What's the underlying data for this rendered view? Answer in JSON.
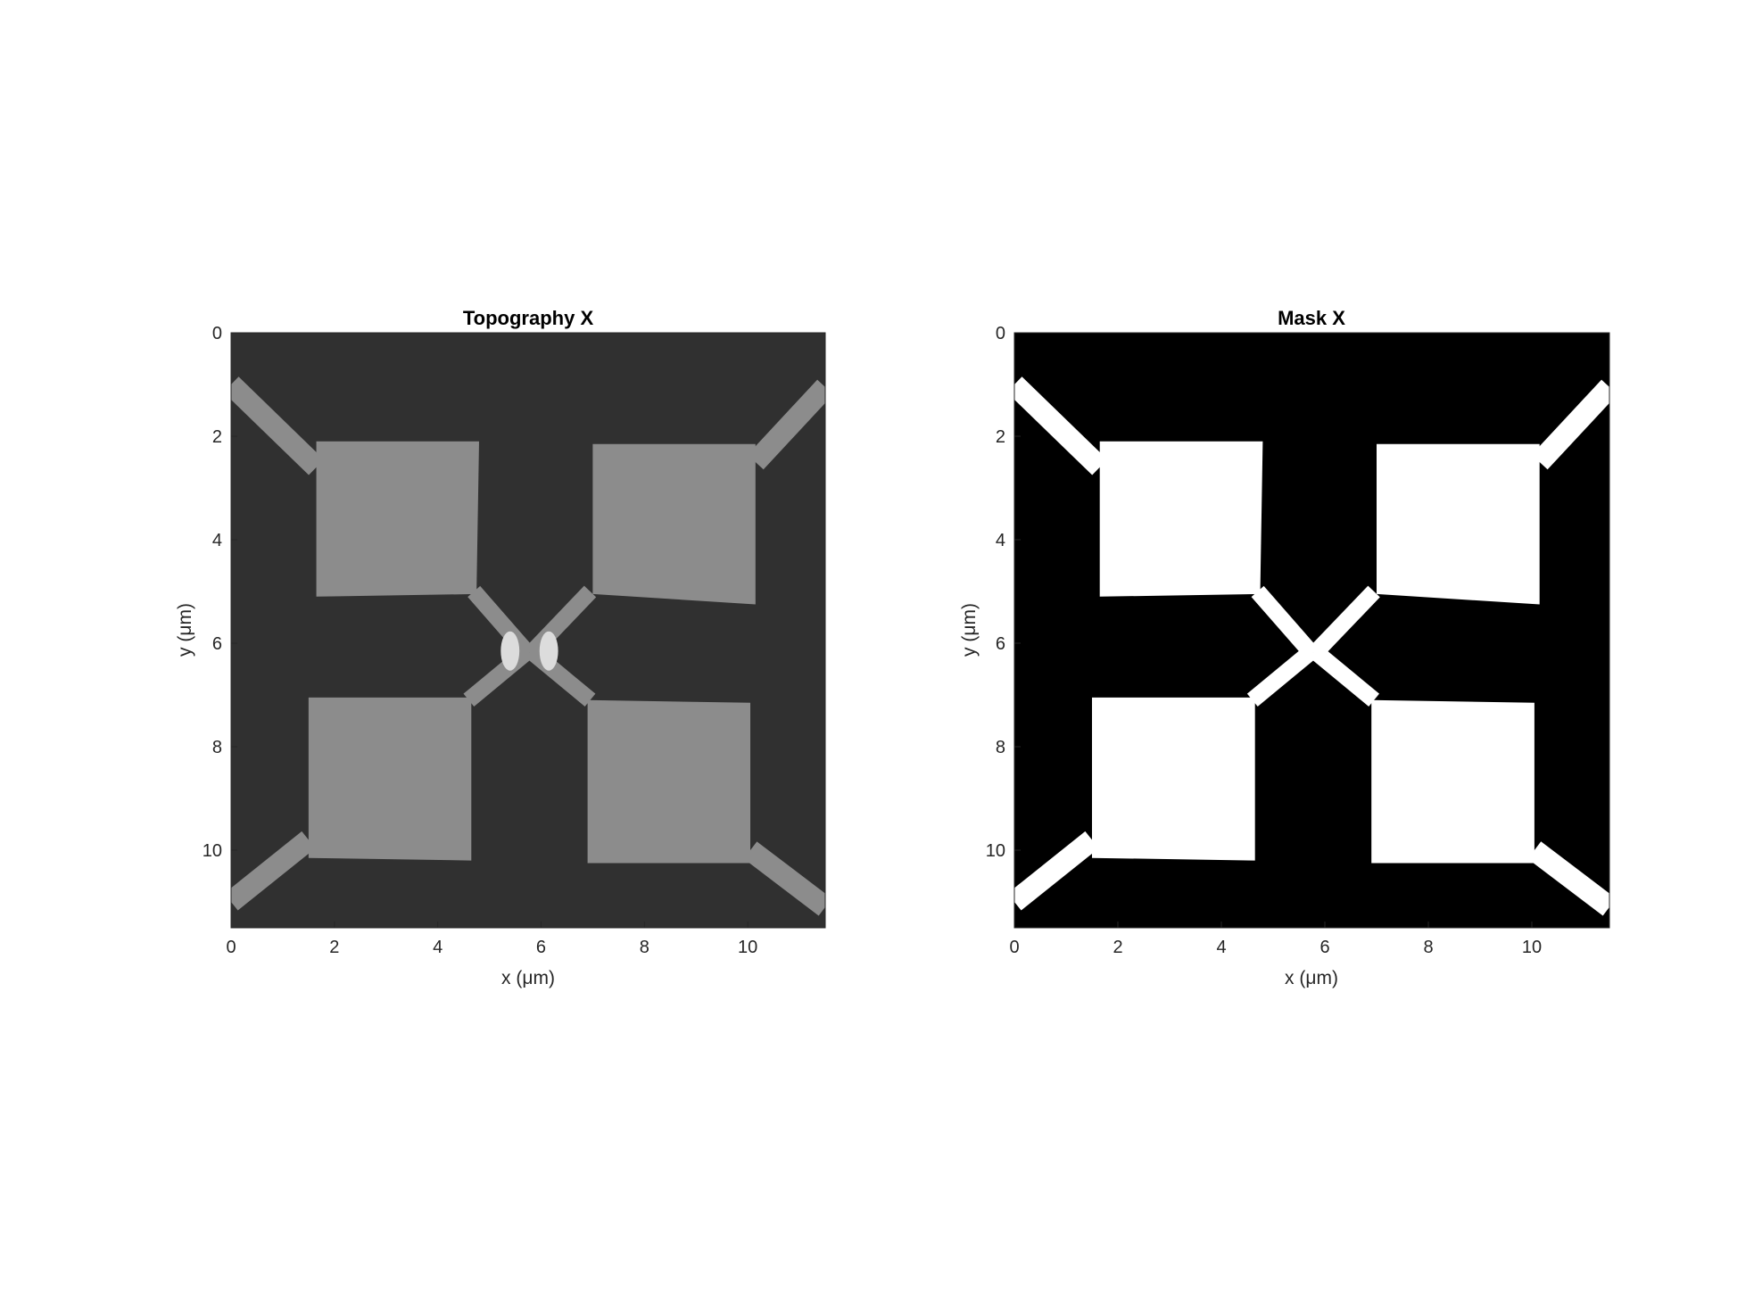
{
  "figure": {
    "background": "#ffffff"
  },
  "chart_data": [
    {
      "type": "heatmap",
      "title": "Topography X",
      "xlabel": "x (μm)",
      "ylabel": "y (μm)",
      "xlim": [
        0,
        11.5
      ],
      "ylim": [
        0,
        11.5
      ],
      "y_direction": "reverse",
      "xticks": [
        0,
        2,
        4,
        6,
        8,
        10
      ],
      "yticks": [
        0,
        2,
        4,
        6,
        8,
        10
      ],
      "xtick_labels": [
        "0",
        "2",
        "4",
        "6",
        "8",
        "10"
      ],
      "ytick_labels": [
        "0",
        "2",
        "4",
        "6",
        "8",
        "10"
      ],
      "colormap": "gray",
      "background_color": "#303030",
      "structure_color": "#8c8c8c",
      "hotspot_color": "#dcdcdc",
      "grid": false,
      "legend": "none"
    },
    {
      "type": "heatmap",
      "title": "Mask X",
      "xlabel": "x (μm)",
      "ylabel": "y (μm)",
      "xlim": [
        0,
        11.5
      ],
      "ylim": [
        0,
        11.5
      ],
      "y_direction": "reverse",
      "xticks": [
        0,
        2,
        4,
        6,
        8,
        10
      ],
      "yticks": [
        0,
        2,
        4,
        6,
        8,
        10
      ],
      "xtick_labels": [
        "0",
        "2",
        "4",
        "6",
        "8",
        "10"
      ],
      "ytick_labels": [
        "0",
        "2",
        "4",
        "6",
        "8",
        "10"
      ],
      "colormap": "binary",
      "background_color": "#000000",
      "structure_color": "#ffffff",
      "grid": false,
      "legend": "none"
    }
  ],
  "structure": {
    "description_units": "μm",
    "pads": [
      [
        [
          1.65,
          2.1
        ],
        [
          4.8,
          2.1
        ],
        [
          4.75,
          5.05
        ],
        [
          1.65,
          5.1
        ]
      ],
      [
        [
          7.0,
          2.15
        ],
        [
          10.15,
          2.15
        ],
        [
          10.15,
          5.25
        ],
        [
          7.0,
          5.05
        ]
      ],
      [
        [
          1.5,
          7.05
        ],
        [
          4.65,
          7.05
        ],
        [
          4.65,
          10.2
        ],
        [
          1.5,
          10.15
        ]
      ],
      [
        [
          6.9,
          7.1
        ],
        [
          10.05,
          7.15
        ],
        [
          10.05,
          10.25
        ],
        [
          6.9,
          10.25
        ]
      ]
    ],
    "leads": [
      [
        [
          0.0,
          1.0
        ],
        [
          1.65,
          2.6
        ]
      ],
      [
        [
          11.5,
          1.05
        ],
        [
          10.15,
          2.5
        ]
      ],
      [
        [
          0.0,
          11.0
        ],
        [
          1.5,
          9.8
        ]
      ],
      [
        [
          11.5,
          11.1
        ],
        [
          10.05,
          10.0
        ]
      ],
      [
        [
          4.7,
          5.0
        ],
        [
          5.75,
          6.2
        ]
      ],
      [
        [
          6.95,
          5.0
        ],
        [
          5.8,
          6.2
        ]
      ],
      [
        [
          4.6,
          7.1
        ],
        [
          5.75,
          6.15
        ]
      ],
      [
        [
          6.95,
          7.1
        ],
        [
          5.8,
          6.15
        ]
      ]
    ],
    "hotspots": [
      [
        5.4,
        6.15
      ],
      [
        6.15,
        6.15
      ]
    ]
  }
}
